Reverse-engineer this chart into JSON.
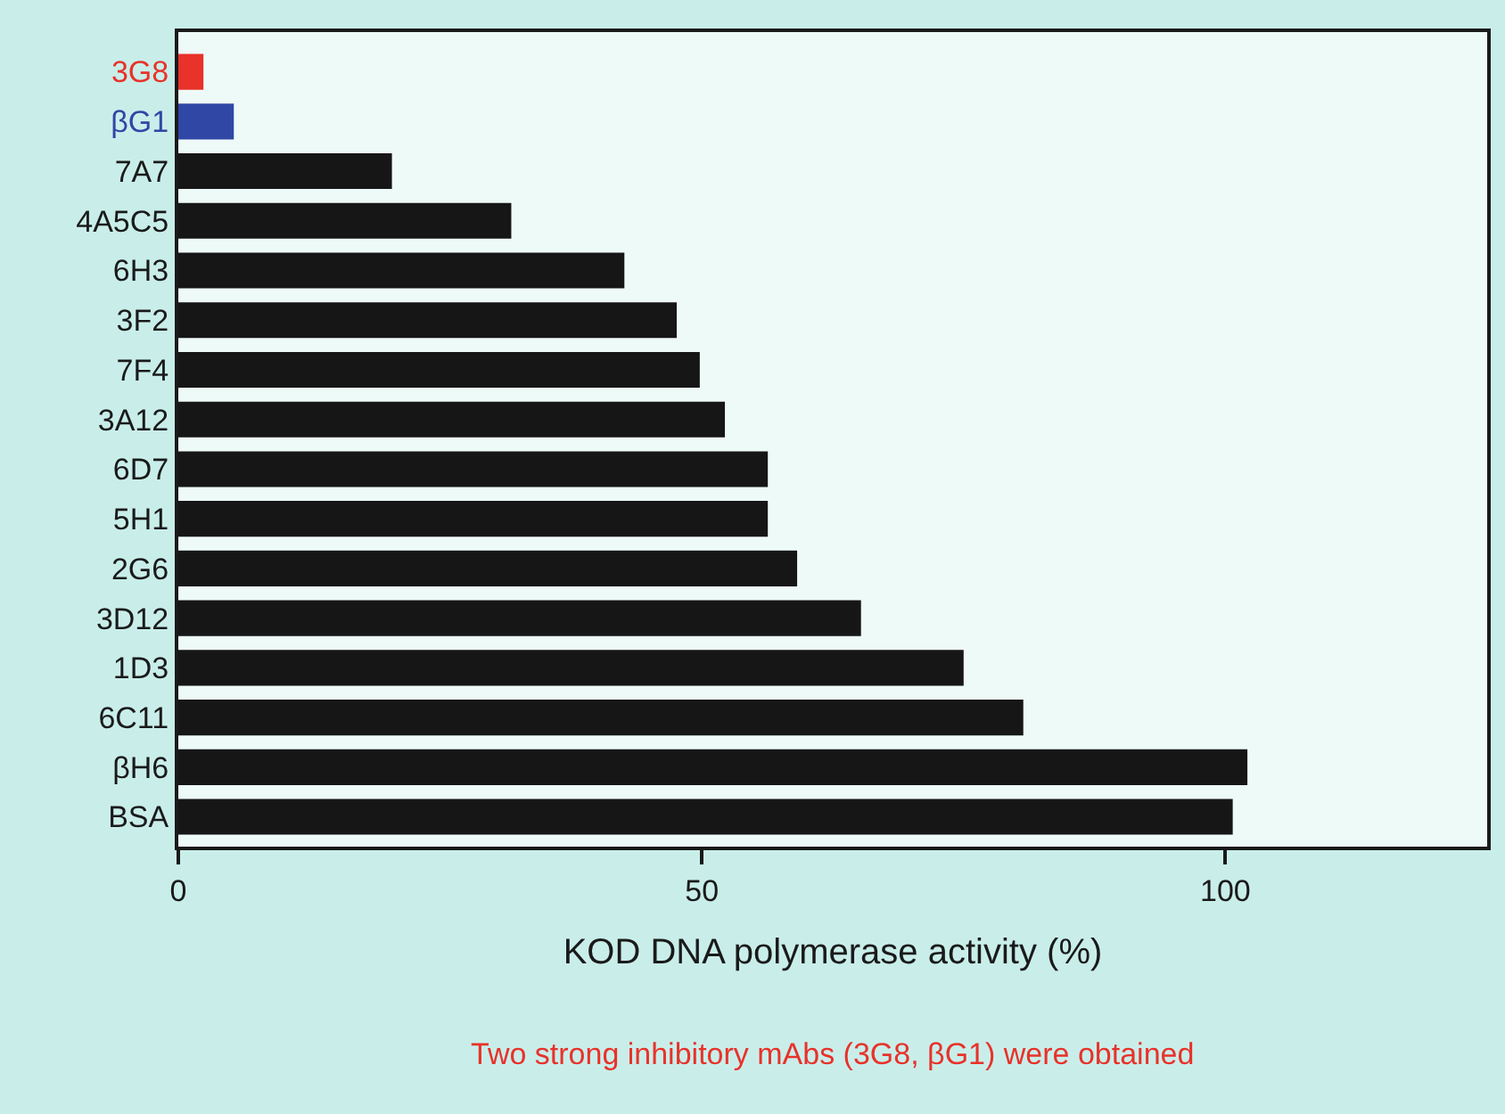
{
  "chart_data": {
    "type": "bar",
    "orientation": "horizontal",
    "xlabel": "KOD DNA polymerase activity (%)",
    "categories": [
      "3G8",
      "βG1",
      "7A7",
      "4A5C5",
      "6H3",
      "3F2",
      "7F4",
      "3A12",
      "6D7",
      "5H1",
      "2G6",
      "3D12",
      "1D3",
      "6C11",
      "βH6",
      "BSA"
    ],
    "values": [
      2.4,
      5.3,
      20.4,
      31.8,
      42.6,
      47.6,
      49.8,
      52.2,
      56.3,
      56.3,
      59.1,
      65.2,
      75.0,
      80.7,
      102.1,
      100.7
    ],
    "colors": [
      "#e8322a",
      "#3047a5",
      "#161616",
      "#161616",
      "#161616",
      "#161616",
      "#161616",
      "#161616",
      "#161616",
      "#161616",
      "#161616",
      "#161616",
      "#161616",
      "#161616",
      "#161616",
      "#161616"
    ],
    "xlim": [
      0,
      125
    ],
    "xticks": [
      0,
      50,
      100
    ],
    "grid": false,
    "annotations": [
      "Two strong inhibitory mAbs (3G8, βG1) were obtained"
    ]
  }
}
